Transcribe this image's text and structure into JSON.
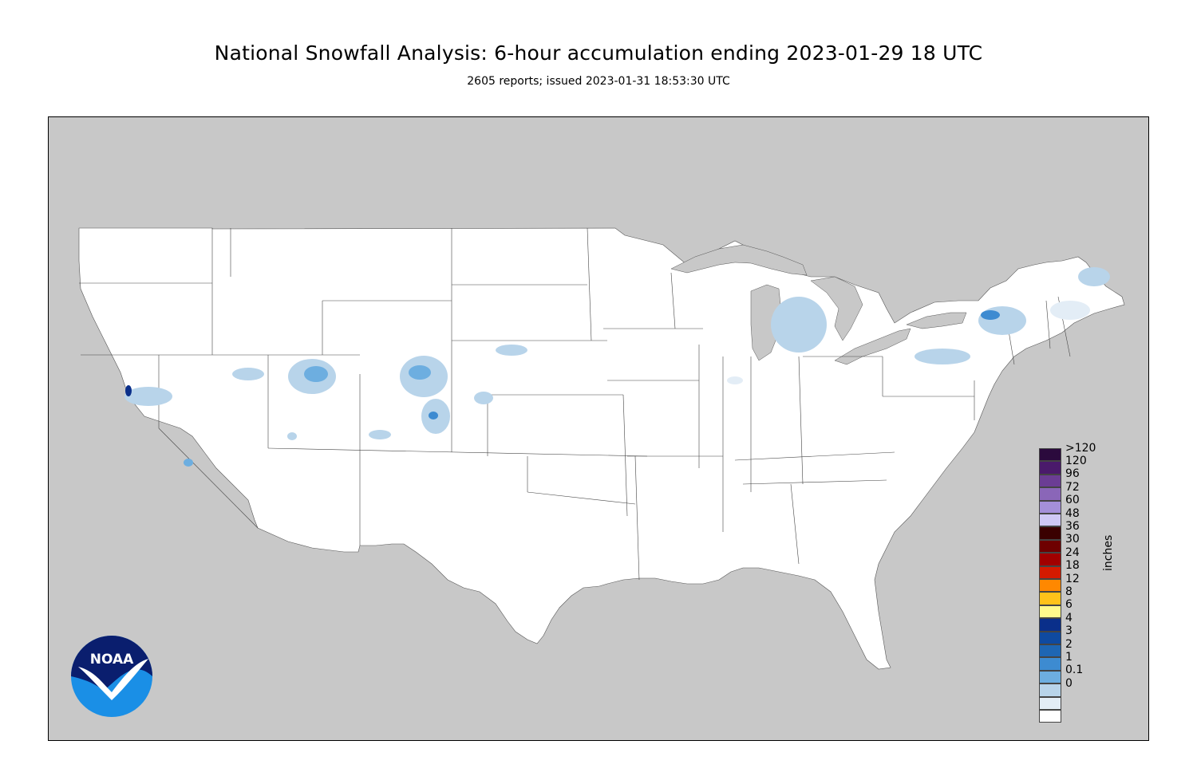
{
  "header": {
    "title": "National Snowfall Analysis: 6-hour accumulation ending 2023-01-29 18 UTC",
    "subtitle": "2605 reports; issued 2023-01-31 18:53:30 UTC"
  },
  "legend": {
    "units": "inches",
    "bins": [
      {
        "label": ">120",
        "color": "#2b0a3d"
      },
      {
        "label": "120",
        "color": "#4a1a6b"
      },
      {
        "label": "96",
        "color": "#6b3d94"
      },
      {
        "label": "72",
        "color": "#8a66b8"
      },
      {
        "label": "60",
        "color": "#a48fd9"
      },
      {
        "label": "48",
        "color": "#cfc8f5"
      },
      {
        "label": "36",
        "color": "#3a0000"
      },
      {
        "label": "30",
        "color": "#6e0000"
      },
      {
        "label": "24",
        "color": "#a10000"
      },
      {
        "label": "18",
        "color": "#d41a00"
      },
      {
        "label": "12",
        "color": "#ff8800"
      },
      {
        "label": "8",
        "color": "#ffc21a"
      },
      {
        "label": "6",
        "color": "#fffa8c"
      },
      {
        "label": "4",
        "color": "#0a2f8a"
      },
      {
        "label": "3",
        "color": "#0f4aa0"
      },
      {
        "label": "2",
        "color": "#1e66b3"
      },
      {
        "label": "1",
        "color": "#3d8bd1"
      },
      {
        "label": "0.1",
        "color": "#6daee0"
      },
      {
        "label": "0",
        "color": "#b8d4ea"
      },
      {
        "label": "",
        "color": "#e3edf6"
      },
      {
        "label": "",
        "color": "#ffffff"
      }
    ]
  },
  "logo": {
    "text": "NOAA",
    "icon": "noaa-logo-icon"
  },
  "colors": {
    "land_outside": "#c8c8c8",
    "water": "#c8c8c8",
    "conus": "#ffffff",
    "border": "#333333"
  }
}
